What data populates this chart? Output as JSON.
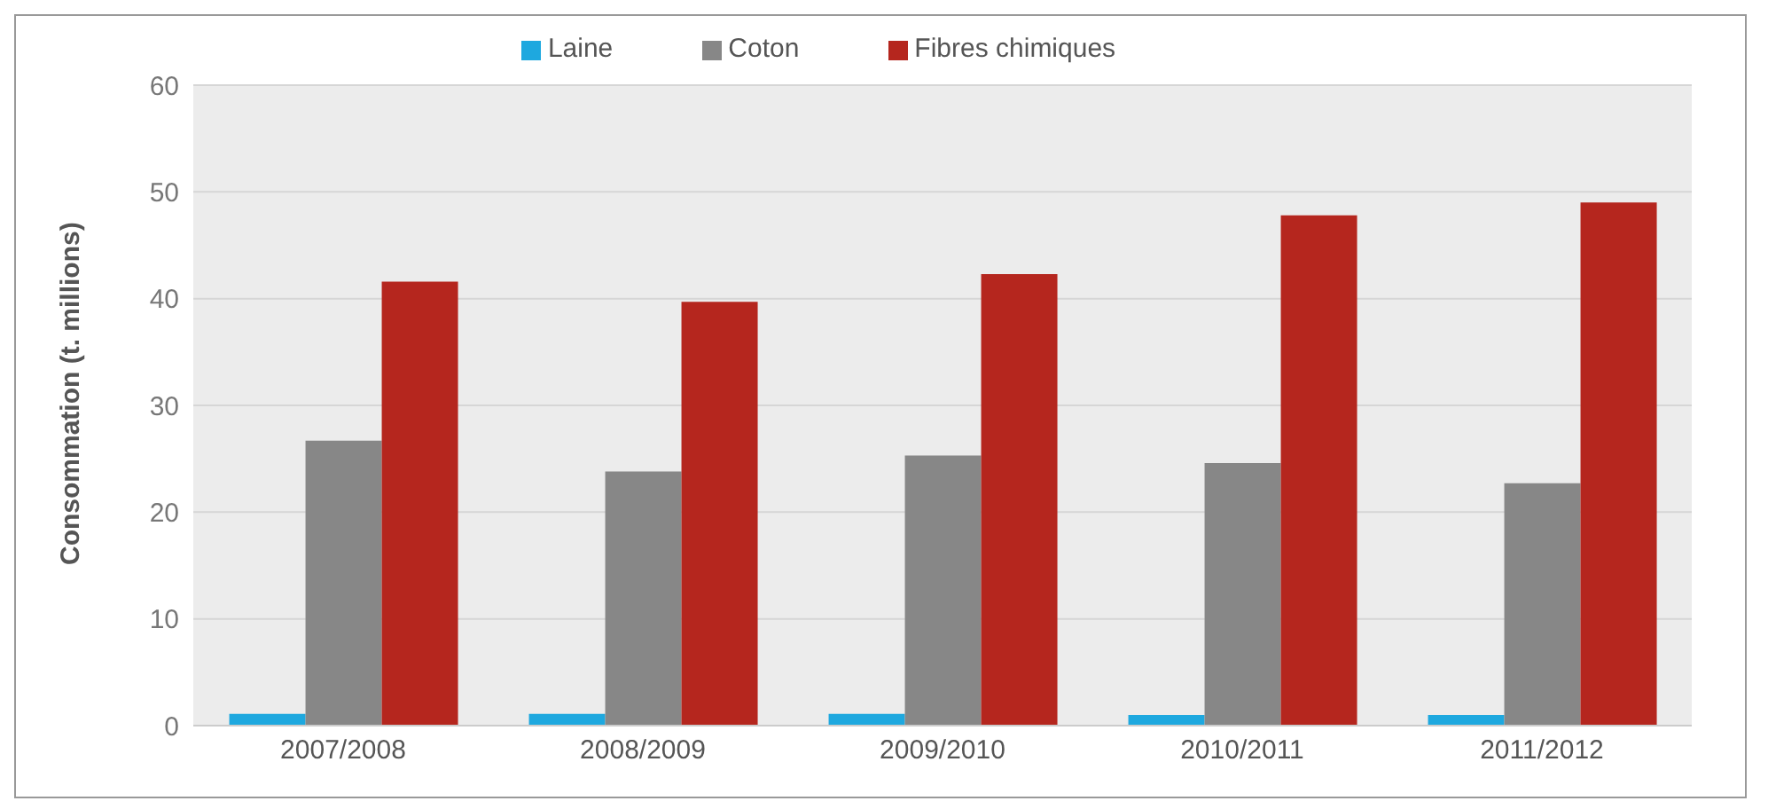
{
  "chart_data": {
    "type": "bar",
    "ylabel": "Consommation (t. millions)",
    "categories": [
      "2007/2008",
      "2008/2009",
      "2009/2010",
      "2010/2011",
      "2011/2012"
    ],
    "series": [
      {
        "name": "Laine",
        "color": "#1ea8df",
        "values": [
          1.1,
          1.1,
          1.1,
          1.0,
          1.0
        ]
      },
      {
        "name": "Coton",
        "color": "#878787",
        "values": [
          26.7,
          23.8,
          25.3,
          24.6,
          22.7
        ]
      },
      {
        "name": "Fibres chimiques",
        "color": "#b5261e",
        "values": [
          41.6,
          39.7,
          42.3,
          47.8,
          49.0
        ]
      }
    ],
    "ylim": [
      0,
      60
    ],
    "yticks": [
      0,
      10,
      20,
      30,
      40,
      50,
      60
    ],
    "grid": "y",
    "legend": "top"
  }
}
